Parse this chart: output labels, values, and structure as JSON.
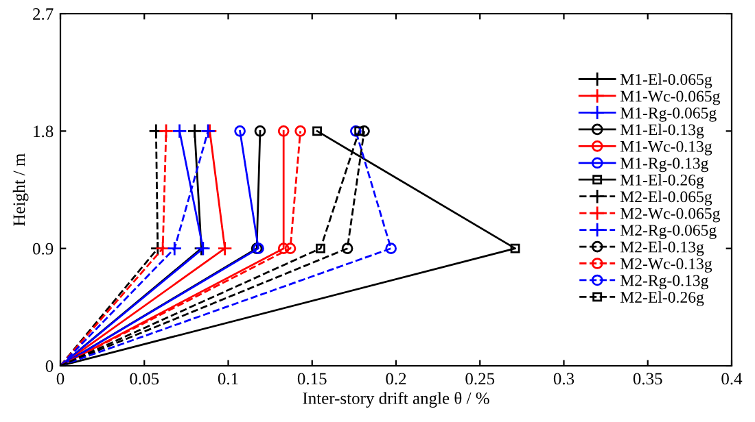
{
  "chart_data": {
    "type": "line",
    "xlabel": "Inter-story drift angle θ / %",
    "ylabel": "Height / m",
    "xlim": [
      0,
      0.4
    ],
    "xticks": [
      0,
      0.05,
      0.1,
      0.15,
      0.2,
      0.25,
      0.3,
      0.35,
      0.4
    ],
    "ylim": [
      0,
      2.7
    ],
    "yticks": [
      0,
      0.9,
      1.8,
      2.7
    ],
    "grid": false,
    "legend": "right",
    "series": [
      {
        "name": "M1-El-0.065g",
        "color": "#000000",
        "marker": "cross",
        "line_style": "solid",
        "x": [
          0,
          0.084,
          0.08
        ],
        "values": [
          0,
          0.9,
          1.8
        ]
      },
      {
        "name": "M1-Wc-0.065g",
        "color": "#ff0000",
        "marker": "cross",
        "line_style": "solid",
        "x": [
          0,
          0.098,
          0.089
        ],
        "values": [
          0,
          0.9,
          1.8
        ]
      },
      {
        "name": "M1-Rg-0.065g",
        "color": "#0000ff",
        "marker": "cross",
        "line_style": "solid",
        "x": [
          0,
          0.085,
          0.071
        ],
        "values": [
          0,
          0.9,
          1.8
        ]
      },
      {
        "name": "M1-El-0.13g",
        "color": "#000000",
        "marker": "circle",
        "line_style": "solid",
        "x": [
          0,
          0.117,
          0.119
        ],
        "values": [
          0,
          0.9,
          1.8
        ]
      },
      {
        "name": "M1-Wc-0.13g",
        "color": "#ff0000",
        "marker": "circle",
        "line_style": "solid",
        "x": [
          0,
          0.133,
          0.133
        ],
        "values": [
          0,
          0.9,
          1.8
        ]
      },
      {
        "name": "M1-Rg-0.13g",
        "color": "#0000ff",
        "marker": "circle",
        "line_style": "solid",
        "x": [
          0,
          0.118,
          0.107
        ],
        "values": [
          0,
          0.9,
          1.8
        ]
      },
      {
        "name": "M1-El-0.26g",
        "color": "#000000",
        "marker": "square",
        "line_style": "solid",
        "x": [
          0,
          0.271,
          0.153
        ],
        "values": [
          0,
          0.9,
          1.8
        ]
      },
      {
        "name": "M2-El-0.065g",
        "color": "#000000",
        "marker": "cross",
        "line_style": "dashed",
        "x": [
          0,
          0.058,
          0.057
        ],
        "values": [
          0,
          0.9,
          1.8
        ]
      },
      {
        "name": "M2-Wc-0.065g",
        "color": "#ff0000",
        "marker": "cross",
        "line_style": "dashed",
        "x": [
          0,
          0.061,
          0.063
        ],
        "values": [
          0,
          0.9,
          1.8
        ]
      },
      {
        "name": "M2-Rg-0.065g",
        "color": "#0000ff",
        "marker": "cross",
        "line_style": "dashed",
        "x": [
          0,
          0.068,
          0.088
        ],
        "values": [
          0,
          0.9,
          1.8
        ]
      },
      {
        "name": "M2-El-0.13g",
        "color": "#000000",
        "marker": "circle",
        "line_style": "dashed",
        "x": [
          0,
          0.171,
          0.181
        ],
        "values": [
          0,
          0.9,
          1.8
        ]
      },
      {
        "name": "M2-Wc-0.13g",
        "color": "#ff0000",
        "marker": "circle",
        "line_style": "dashed",
        "x": [
          0,
          0.137,
          0.143
        ],
        "values": [
          0,
          0.9,
          1.8
        ]
      },
      {
        "name": "M2-Rg-0.13g",
        "color": "#0000ff",
        "marker": "circle",
        "line_style": "dashed",
        "x": [
          0,
          0.197,
          0.176
        ],
        "values": [
          0,
          0.9,
          1.8
        ]
      },
      {
        "name": "M2-El-0.26g",
        "color": "#000000",
        "marker": "square",
        "line_style": "dashed",
        "x": [
          0,
          0.155,
          0.178
        ],
        "values": [
          0,
          0.9,
          1.8
        ]
      }
    ]
  }
}
